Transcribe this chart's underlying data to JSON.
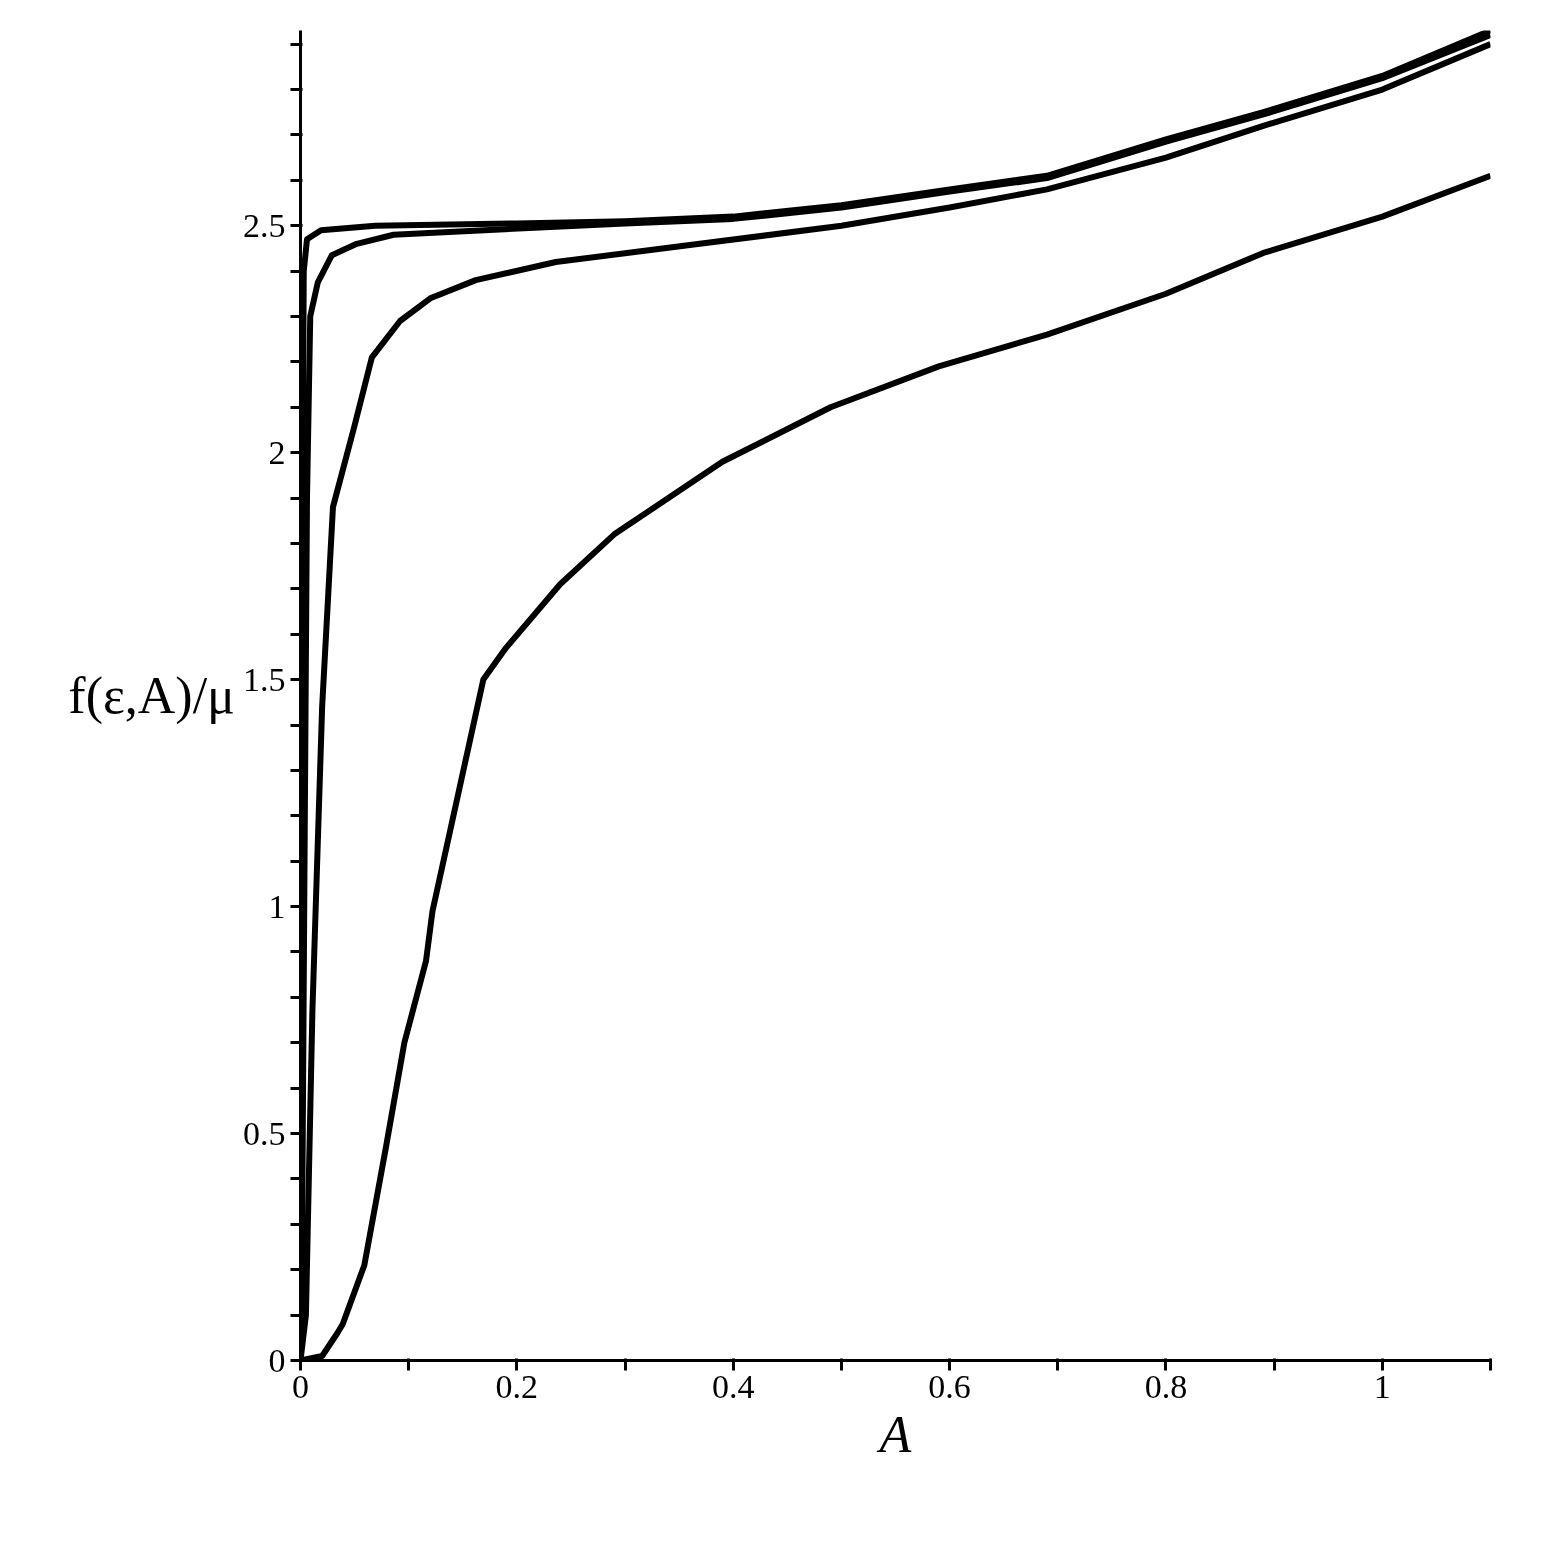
{
  "chart_data": {
    "type": "line",
    "xlabel": "A",
    "ylabel": "f(ε,A)/μ",
    "xlim": [
      0,
      1.1
    ],
    "ylim": [
      0,
      2.93
    ],
    "xticks": [
      0,
      {
        "value": 0.1,
        "label": null
      },
      0.2,
      {
        "value": 0.3,
        "label": null
      },
      0.4,
      {
        "value": 0.5,
        "label": null
      },
      0.6,
      {
        "value": 0.7,
        "label": null
      },
      0.8,
      {
        "value": 0.9,
        "label": null
      },
      1,
      {
        "value": 1.1,
        "label": null
      }
    ],
    "yticks": [
      0,
      {
        "value": 0.1,
        "label": null
      },
      {
        "value": 0.2,
        "label": null
      },
      {
        "value": 0.3,
        "label": null
      },
      {
        "value": 0.4,
        "label": null
      },
      0.5,
      {
        "value": 0.6,
        "label": null
      },
      {
        "value": 0.7,
        "label": null
      },
      {
        "value": 0.8,
        "label": null
      },
      {
        "value": 0.9,
        "label": null
      },
      1,
      {
        "value": 1.1,
        "label": null
      },
      {
        "value": 1.2,
        "label": null
      },
      {
        "value": 1.3,
        "label": null
      },
      {
        "value": 1.4,
        "label": null
      },
      1.5,
      {
        "value": 1.6,
        "label": null
      },
      {
        "value": 1.7,
        "label": null
      },
      {
        "value": 1.8,
        "label": null
      },
      {
        "value": 1.9,
        "label": null
      },
      2,
      {
        "value": 2.1,
        "label": null
      },
      {
        "value": 2.2,
        "label": null
      },
      {
        "value": 2.3,
        "label": null
      },
      {
        "value": 2.4,
        "label": null
      },
      2.5,
      {
        "value": 2.6,
        "label": null
      },
      {
        "value": 2.7,
        "label": null
      },
      {
        "value": 2.8,
        "label": null
      },
      {
        "value": 2.9,
        "label": null
      }
    ],
    "grid": false,
    "line_style": "solid",
    "series": [
      {
        "color": "#000000",
        "x": [
          0,
          0.001,
          0.003,
          0.006,
          0.019,
          0.069,
          0.2,
          0.3,
          0.4,
          0.5,
          0.6,
          0.69,
          0.8,
          0.89,
          1.0,
          1.1
        ],
        "values": [
          0,
          1.5,
          2.4,
          2.47,
          2.49,
          2.5,
          2.505,
          2.51,
          2.52,
          2.545,
          2.58,
          2.61,
          2.69,
          2.75,
          2.83,
          2.93
        ]
      },
      {
        "color": "#000000",
        "x": [
          0,
          0.001,
          0.004,
          0.006,
          0.009,
          0.016,
          0.029,
          0.052,
          0.086,
          0.17,
          0.3,
          0.4,
          0.5,
          0.6,
          0.69,
          0.8,
          0.89,
          1.0,
          1.1
        ],
        "values": [
          0,
          0.1,
          1.2,
          1.9,
          2.3,
          2.375,
          2.435,
          2.46,
          2.48,
          2.49,
          2.505,
          2.515,
          2.54,
          2.575,
          2.605,
          2.685,
          2.745,
          2.825,
          2.92
        ]
      },
      {
        "color": "#000000",
        "x": [
          0,
          0.005,
          0.011,
          0.02,
          0.03,
          0.05,
          0.066,
          0.092,
          0.12,
          0.162,
          0.236,
          0.369,
          0.5,
          0.6,
          0.69,
          0.8,
          0.89,
          1.0,
          1.1
        ],
        "values": [
          0,
          0.1,
          0.77,
          1.44,
          1.88,
          2.06,
          2.21,
          2.29,
          2.34,
          2.38,
          2.42,
          2.46,
          2.5,
          2.54,
          2.58,
          2.65,
          2.72,
          2.8,
          2.9
        ]
      },
      {
        "color": "#000000",
        "x": [
          0,
          0.02,
          0.034,
          0.039,
          0.059,
          0.079,
          0.096,
          0.116,
          0.122,
          0.169,
          0.19,
          0.24,
          0.29,
          0.39,
          0.49,
          0.59,
          0.69,
          0.8,
          0.89,
          1.0,
          1.1
        ],
        "values": [
          0,
          0.01,
          0.06,
          0.08,
          0.21,
          0.47,
          0.7,
          0.88,
          0.99,
          1.5,
          1.57,
          1.71,
          1.82,
          1.98,
          2.1,
          2.19,
          2.26,
          2.35,
          2.44,
          2.52,
          2.61
        ]
      }
    ]
  }
}
